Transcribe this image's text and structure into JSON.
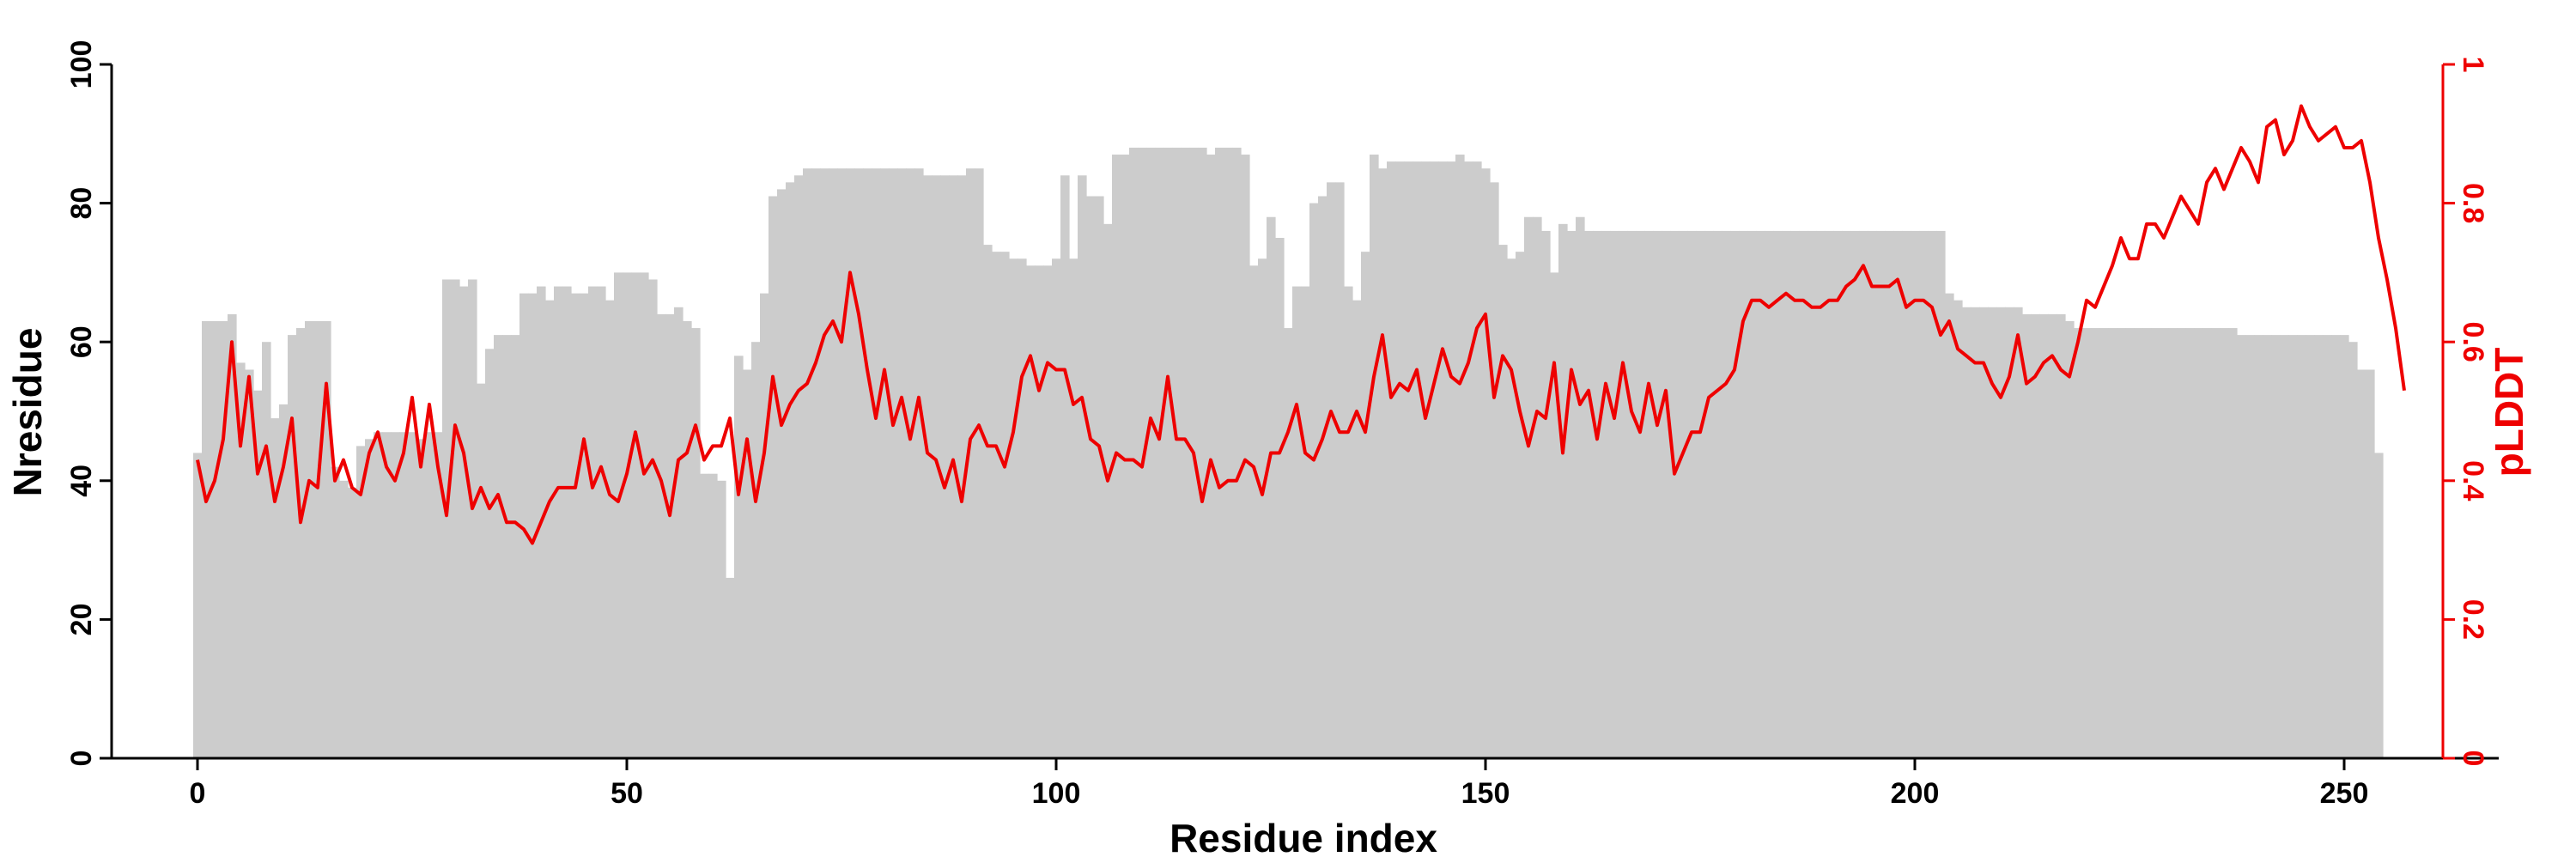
{
  "chart_data": {
    "type": "bar+line",
    "title": "",
    "xlabel": "Residue index",
    "ylabel_left": "Nresidue",
    "ylabel_right": "pLDDT",
    "xlim": [
      -10,
      268
    ],
    "ylim_left": [
      0,
      100
    ],
    "ylim_right": [
      0,
      1
    ],
    "x_ticks": [
      0,
      50,
      100,
      150,
      200,
      250
    ],
    "y_ticks_left": [
      0,
      20,
      40,
      60,
      80,
      100
    ],
    "y_ticks_right": [
      0,
      0.2,
      0.4,
      0.6,
      0.8,
      1
    ],
    "x_tick_labels": [
      "0",
      "50",
      "100",
      "150",
      "200",
      "250"
    ],
    "y_tick_labels_left": [
      "0",
      "20",
      "40",
      "60",
      "80",
      "100"
    ],
    "y_tick_labels_right": [
      "0",
      "0.2",
      "0.4",
      "0.6",
      "0.8",
      "1"
    ],
    "grid": false,
    "colors": {
      "bars": "#cccccc",
      "line": "#ee0000",
      "axis_left": "#000000",
      "axis_right": "#ee0000"
    },
    "series": [
      {
        "type": "bar",
        "axis": "left",
        "x_start": 0,
        "values": [
          44,
          63,
          63,
          63,
          64,
          57,
          56,
          53,
          60,
          49,
          51,
          61,
          62,
          63,
          63,
          63,
          42,
          40,
          39,
          45,
          46,
          47,
          47,
          47,
          47,
          47,
          46,
          47,
          47,
          69,
          69,
          68,
          69,
          54,
          59,
          61,
          61,
          61,
          67,
          67,
          68,
          66,
          68,
          68,
          67,
          67,
          68,
          68,
          66,
          70,
          70,
          70,
          70,
          69,
          64,
          64,
          65,
          63,
          62,
          41,
          41,
          40,
          26,
          58,
          56,
          60,
          67,
          81,
          82,
          83,
          84,
          85,
          85,
          85,
          85,
          85,
          85,
          85,
          85,
          85,
          85,
          85,
          85,
          85,
          85,
          84,
          84,
          84,
          84,
          84,
          85,
          85,
          74,
          73,
          73,
          72,
          72,
          71,
          71,
          71,
          72,
          84,
          72,
          84,
          81,
          81,
          77,
          87,
          87,
          88,
          88,
          88,
          88,
          88,
          88,
          88,
          88,
          88,
          87,
          88,
          88,
          88,
          87,
          71,
          72,
          78,
          75,
          62,
          68,
          68,
          80,
          81,
          83,
          83,
          68,
          66,
          73,
          87,
          85,
          86,
          86,
          86,
          86,
          86,
          86,
          86,
          86,
          87,
          86,
          86,
          85,
          83,
          74,
          72,
          73,
          78,
          78,
          76,
          70,
          77,
          76,
          78,
          76,
          76,
          76,
          76,
          76,
          76,
          76,
          76,
          76,
          76,
          76,
          76,
          76,
          76,
          76,
          76,
          76,
          76,
          76,
          76,
          76,
          76,
          76,
          76,
          76,
          76,
          76,
          76,
          76,
          76,
          76,
          76,
          76,
          76,
          76,
          76,
          76,
          76,
          76,
          76,
          76,
          76,
          67,
          66,
          65,
          65,
          65,
          65,
          65,
          65,
          65,
          64,
          64,
          64,
          64,
          64,
          63,
          62,
          62,
          62,
          62,
          62,
          62,
          62,
          62,
          62,
          62,
          62,
          62,
          62,
          62,
          62,
          62,
          62,
          62,
          62,
          61,
          61,
          61,
          61,
          61,
          61,
          61,
          61,
          61,
          61,
          61,
          61,
          61,
          60,
          56,
          56,
          44
        ]
      },
      {
        "type": "line",
        "axis": "right",
        "x_start": 0,
        "values": [
          0.43,
          0.37,
          0.4,
          0.46,
          0.6,
          0.45,
          0.55,
          0.41,
          0.45,
          0.37,
          0.42,
          0.49,
          0.34,
          0.4,
          0.39,
          0.54,
          0.4,
          0.43,
          0.39,
          0.38,
          0.44,
          0.47,
          0.42,
          0.4,
          0.44,
          0.52,
          0.42,
          0.51,
          0.42,
          0.35,
          0.48,
          0.44,
          0.36,
          0.39,
          0.36,
          0.38,
          0.34,
          0.34,
          0.33,
          0.31,
          0.34,
          0.37,
          0.39,
          0.39,
          0.39,
          0.46,
          0.39,
          0.42,
          0.38,
          0.37,
          0.41,
          0.47,
          0.41,
          0.43,
          0.4,
          0.35,
          0.43,
          0.44,
          0.48,
          0.43,
          0.45,
          0.45,
          0.49,
          0.38,
          0.46,
          0.37,
          0.44,
          0.55,
          0.48,
          0.51,
          0.53,
          0.54,
          0.57,
          0.61,
          0.63,
          0.6,
          0.7,
          0.64,
          0.56,
          0.49,
          0.56,
          0.48,
          0.52,
          0.46,
          0.52,
          0.44,
          0.43,
          0.39,
          0.43,
          0.37,
          0.46,
          0.48,
          0.45,
          0.45,
          0.42,
          0.47,
          0.55,
          0.58,
          0.53,
          0.57,
          0.56,
          0.56,
          0.51,
          0.52,
          0.46,
          0.45,
          0.4,
          0.44,
          0.43,
          0.43,
          0.42,
          0.49,
          0.46,
          0.55,
          0.46,
          0.46,
          0.44,
          0.37,
          0.43,
          0.39,
          0.4,
          0.4,
          0.43,
          0.42,
          0.38,
          0.44,
          0.44,
          0.47,
          0.51,
          0.44,
          0.43,
          0.46,
          0.5,
          0.47,
          0.47,
          0.5,
          0.47,
          0.55,
          0.61,
          0.52,
          0.54,
          0.53,
          0.56,
          0.49,
          0.54,
          0.59,
          0.55,
          0.54,
          0.57,
          0.62,
          0.64,
          0.52,
          0.58,
          0.56,
          0.5,
          0.45,
          0.5,
          0.49,
          0.57,
          0.44,
          0.56,
          0.51,
          0.53,
          0.46,
          0.54,
          0.49,
          0.57,
          0.5,
          0.47,
          0.54,
          0.48,
          0.53,
          0.41,
          0.44,
          0.47,
          0.47,
          0.52,
          0.53,
          0.54,
          0.56,
          0.63,
          0.66,
          0.66,
          0.65,
          0.66,
          0.67,
          0.66,
          0.66,
          0.65,
          0.65,
          0.66,
          0.66,
          0.68,
          0.69,
          0.71,
          0.68,
          0.68,
          0.68,
          0.69,
          0.65,
          0.66,
          0.66,
          0.65,
          0.61,
          0.63,
          0.59,
          0.58,
          0.57,
          0.57,
          0.54,
          0.52,
          0.55,
          0.61,
          0.54,
          0.55,
          0.57,
          0.58,
          0.56,
          0.55,
          0.6,
          0.66,
          0.65,
          0.68,
          0.71,
          0.75,
          0.72,
          0.72,
          0.77,
          0.77,
          0.75,
          0.78,
          0.81,
          0.79,
          0.77,
          0.83,
          0.85,
          0.82,
          0.85,
          0.88,
          0.86,
          0.83,
          0.91,
          0.92,
          0.87,
          0.89,
          0.94,
          0.91,
          0.89,
          0.9,
          0.91,
          0.88,
          0.88,
          0.89,
          0.83,
          0.75,
          0.69,
          0.62,
          0.53
        ]
      }
    ]
  }
}
